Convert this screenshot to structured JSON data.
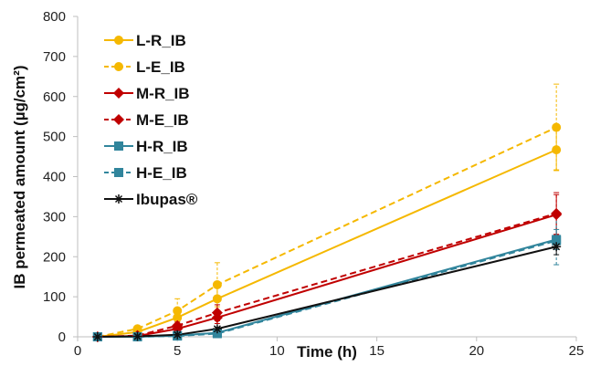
{
  "chart_data": {
    "type": "line",
    "xlabel": "Time (h)",
    "ylabel": "IB permeated amount (µg/cm²)",
    "xlim": [
      0,
      25
    ],
    "ylim": [
      0,
      800
    ],
    "xticks": [
      0,
      5,
      10,
      15,
      20,
      25
    ],
    "yticks": [
      0,
      100,
      200,
      300,
      400,
      500,
      600,
      700,
      800
    ],
    "grid": false,
    "legend_position": "top-left",
    "series": [
      {
        "name": "L-R_IB",
        "color": "#F5B800",
        "dash": "solid",
        "marker": "circle",
        "x": [
          1,
          3,
          5,
          7,
          24
        ],
        "y": [
          0,
          12,
          48,
          95,
          467
        ],
        "err": [
          0,
          4,
          15,
          30,
          50
        ]
      },
      {
        "name": "L-E_IB",
        "color": "#F5B800",
        "dash": "dashed",
        "marker": "circle",
        "x": [
          1,
          3,
          5,
          7,
          24
        ],
        "y": [
          0,
          20,
          65,
          130,
          523
        ],
        "err": [
          0,
          6,
          30,
          55,
          108
        ]
      },
      {
        "name": "M-R_IB",
        "color": "#C00000",
        "dash": "solid",
        "marker": "diamond",
        "x": [
          1,
          3,
          5,
          7,
          24
        ],
        "y": [
          0,
          2,
          20,
          48,
          305
        ],
        "err": [
          0,
          1,
          8,
          15,
          50
        ]
      },
      {
        "name": "M-E_IB",
        "color": "#C00000",
        "dash": "dashed",
        "marker": "diamond",
        "x": [
          1,
          3,
          5,
          7,
          24
        ],
        "y": [
          0,
          3,
          28,
          60,
          308
        ],
        "err": [
          0,
          1,
          10,
          20,
          52
        ]
      },
      {
        "name": "H-R_IB",
        "color": "#31859C",
        "dash": "solid",
        "marker": "square",
        "x": [
          1,
          3,
          5,
          7,
          24
        ],
        "y": [
          0,
          0,
          3,
          10,
          243
        ],
        "err": [
          0,
          0,
          2,
          4,
          25
        ]
      },
      {
        "name": "H-E_IB",
        "color": "#31859C",
        "dash": "dashed",
        "marker": "square",
        "x": [
          1,
          3,
          5,
          7,
          24
        ],
        "y": [
          0,
          0,
          2,
          8,
          240
        ],
        "err": [
          0,
          0,
          2,
          4,
          60
        ]
      },
      {
        "name": "Ibupas®",
        "color": "#111111",
        "dash": "solid",
        "marker": "star",
        "x": [
          1,
          3,
          5,
          7,
          24
        ],
        "y": [
          0,
          1,
          5,
          20,
          225
        ],
        "err": [
          0,
          0,
          2,
          4,
          20
        ]
      }
    ]
  }
}
